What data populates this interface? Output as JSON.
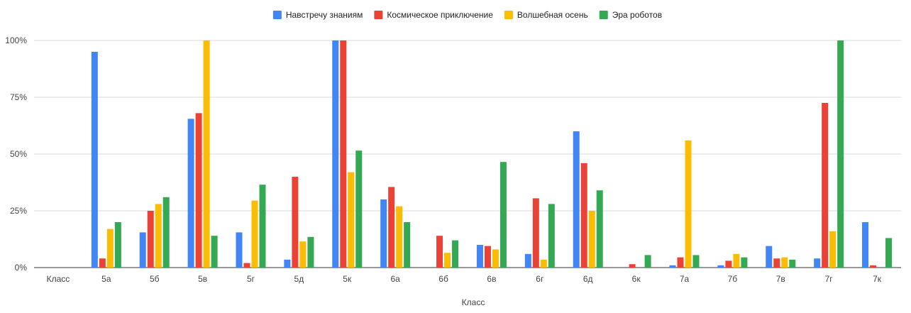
{
  "chart_data": {
    "type": "bar",
    "xlabel": "Класс",
    "ylim": [
      0,
      100
    ],
    "yticks": [
      "0%",
      "25%",
      "50%",
      "75%",
      "100%"
    ],
    "ytick_values": [
      0,
      25,
      50,
      75,
      100
    ],
    "grid": true,
    "legend_position": "top",
    "categories": [
      "Класс",
      "5а",
      "5б",
      "5в",
      "5г",
      "5д",
      "5к",
      "6а",
      "6б",
      "6в",
      "6г",
      "6д",
      "6к",
      "7а",
      "7б",
      "7в",
      "7г",
      "7к"
    ],
    "series": [
      {
        "name": "Навстречу знаниям",
        "color": "#4285f4",
        "values": [
          null,
          95,
          15.5,
          65.5,
          15.5,
          3.5,
          100,
          30,
          0,
          10,
          6,
          60,
          0,
          1,
          1,
          9.5,
          4,
          20
        ]
      },
      {
        "name": "Космическое приключение",
        "color": "#ea4335",
        "values": [
          null,
          4,
          25,
          68,
          2,
          40,
          100,
          35.5,
          14,
          9.5,
          30.5,
          46,
          1.5,
          4.5,
          3,
          4,
          72.5,
          1
        ]
      },
      {
        "name": "Волшебная осень",
        "color": "#fbbc04",
        "values": [
          null,
          17,
          28,
          100,
          29.5,
          11.5,
          42,
          27,
          6.5,
          8,
          3.5,
          25,
          0,
          56,
          6,
          4.5,
          16,
          0
        ]
      },
      {
        "name": "Эра роботов",
        "color": "#34a853",
        "values": [
          null,
          20,
          31,
          14,
          36.5,
          13.5,
          51.5,
          20,
          12,
          46.5,
          28,
          34,
          5.5,
          5.5,
          4.5,
          3.5,
          100,
          13
        ]
      }
    ]
  }
}
